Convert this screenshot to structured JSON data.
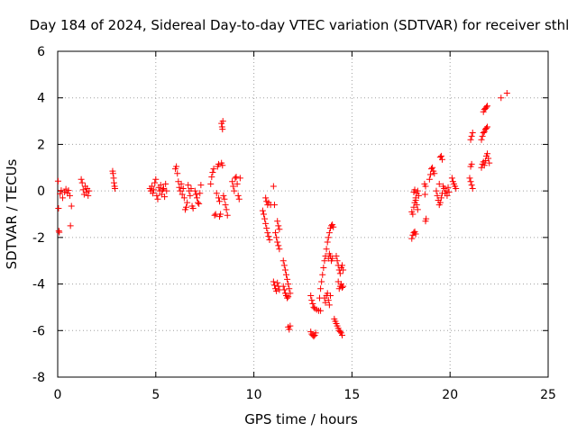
{
  "chart_data": {
    "type": "scatter",
    "title": "Day 184 of 2024, Sidereal Day-to-day VTEC variation (SDTVAR) for receiver sthl",
    "xlabel": "GPS time / hours",
    "ylabel": "SDTVAR / TECUs",
    "xlim": [
      0,
      25
    ],
    "ylim": [
      -8,
      6
    ],
    "xticks": [
      0,
      5,
      10,
      15,
      20,
      25
    ],
    "yticks": [
      -8,
      -6,
      -4,
      -2,
      0,
      2,
      4,
      6
    ],
    "xtick_labels": [
      "0",
      "5",
      "10",
      "15",
      "20",
      "25"
    ],
    "ytick_labels": [
      "-8",
      "-6",
      "-4",
      "-2",
      "0",
      "2",
      "4",
      "6"
    ],
    "grid": true,
    "marker": "+",
    "color": "#ff0000",
    "series": [
      {
        "name": "sthl",
        "points": [
          [
            0.02,
            0.42
          ],
          [
            0.04,
            -0.75
          ],
          [
            0.06,
            -1.72
          ],
          [
            0.08,
            -1.78
          ],
          [
            0.12,
            -0.12
          ],
          [
            0.18,
            0.02
          ],
          [
            0.25,
            -0.3
          ],
          [
            0.35,
            -0.05
          ],
          [
            0.42,
            0.08
          ],
          [
            0.5,
            -0.1
          ],
          [
            0.55,
            0.02
          ],
          [
            0.62,
            -0.2
          ],
          [
            0.65,
            -1.5
          ],
          [
            0.7,
            -0.65
          ],
          [
            1.2,
            0.5
          ],
          [
            1.25,
            0.35
          ],
          [
            1.3,
            0.05
          ],
          [
            1.35,
            -0.15
          ],
          [
            1.4,
            0.2
          ],
          [
            1.45,
            -0.05
          ],
          [
            1.5,
            0.1
          ],
          [
            1.55,
            -0.2
          ],
          [
            1.6,
            0.0
          ],
          [
            2.8,
            0.85
          ],
          [
            2.82,
            0.75
          ],
          [
            2.85,
            0.55
          ],
          [
            2.87,
            0.35
          ],
          [
            2.9,
            0.2
          ],
          [
            2.92,
            0.1
          ],
          [
            4.7,
            0.1
          ],
          [
            4.75,
            0.0
          ],
          [
            4.8,
            0.2
          ],
          [
            4.85,
            -0.1
          ],
          [
            4.9,
            0.05
          ],
          [
            4.95,
            0.35
          ],
          [
            5.0,
            0.5
          ],
          [
            5.05,
            -0.2
          ],
          [
            5.1,
            -0.35
          ],
          [
            5.15,
            0.15
          ],
          [
            5.2,
            0.0
          ],
          [
            5.25,
            0.25
          ],
          [
            5.3,
            -0.15
          ],
          [
            5.35,
            0.05
          ],
          [
            5.4,
            0.1
          ],
          [
            5.45,
            -0.25
          ],
          [
            5.5,
            0.3
          ],
          [
            5.55,
            0.0
          ],
          [
            6.0,
            0.95
          ],
          [
            6.05,
            1.05
          ],
          [
            6.1,
            0.75
          ],
          [
            6.15,
            0.4
          ],
          [
            6.2,
            0.15
          ],
          [
            6.25,
            0.0
          ],
          [
            6.3,
            0.3
          ],
          [
            6.35,
            -0.15
          ],
          [
            6.4,
            0.1
          ],
          [
            6.45,
            -0.3
          ],
          [
            6.5,
            -0.8
          ],
          [
            6.55,
            -0.7
          ],
          [
            6.6,
            -0.5
          ],
          [
            6.65,
            0.25
          ],
          [
            6.7,
            0.0
          ],
          [
            6.75,
            -0.2
          ],
          [
            6.8,
            0.1
          ],
          [
            6.85,
            -0.65
          ],
          [
            6.9,
            -0.75
          ],
          [
            7.0,
            0.0
          ],
          [
            7.05,
            -0.15
          ],
          [
            7.1,
            -0.3
          ],
          [
            7.15,
            -0.5
          ],
          [
            7.2,
            -0.55
          ],
          [
            7.25,
            -0.1
          ],
          [
            7.3,
            0.25
          ],
          [
            7.8,
            0.3
          ],
          [
            7.85,
            0.6
          ],
          [
            7.9,
            0.8
          ],
          [
            7.95,
            0.95
          ],
          [
            8.0,
            -1.05
          ],
          [
            8.05,
            -1.0
          ],
          [
            8.1,
            -0.1
          ],
          [
            8.15,
            1.05
          ],
          [
            8.2,
            1.15
          ],
          [
            8.25,
            -1.1
          ],
          [
            8.3,
            -1.0
          ],
          [
            8.35,
            1.2
          ],
          [
            8.4,
            1.1
          ],
          [
            8.35,
            2.9
          ],
          [
            8.38,
            2.75
          ],
          [
            8.4,
            2.65
          ],
          [
            8.42,
            3.0
          ],
          [
            8.45,
            -0.2
          ],
          [
            8.5,
            -0.35
          ],
          [
            8.55,
            -0.6
          ],
          [
            8.6,
            -0.8
          ],
          [
            8.65,
            -1.05
          ],
          [
            8.2,
            -0.3
          ],
          [
            8.25,
            -0.45
          ],
          [
            8.9,
            0.4
          ],
          [
            8.95,
            0.2
          ],
          [
            9.0,
            0.0
          ],
          [
            9.05,
            0.55
          ],
          [
            9.1,
            0.6
          ],
          [
            9.15,
            0.3
          ],
          [
            9.2,
            -0.2
          ],
          [
            9.25,
            -0.35
          ],
          [
            9.3,
            0.55
          ],
          [
            10.45,
            -0.85
          ],
          [
            10.5,
            -1.0
          ],
          [
            10.55,
            -1.2
          ],
          [
            10.6,
            -1.4
          ],
          [
            10.65,
            -1.6
          ],
          [
            10.7,
            -1.8
          ],
          [
            10.75,
            -1.95
          ],
          [
            10.8,
            -2.1
          ],
          [
            10.6,
            -0.3
          ],
          [
            10.65,
            -0.45
          ],
          [
            10.7,
            -0.6
          ],
          [
            10.75,
            -0.5
          ],
          [
            10.85,
            -0.6
          ],
          [
            11.0,
            0.2
          ],
          [
            11.05,
            -0.6
          ],
          [
            11.1,
            -1.8
          ],
          [
            11.15,
            -2.0
          ],
          [
            11.2,
            -2.2
          ],
          [
            11.25,
            -2.35
          ],
          [
            11.3,
            -2.5
          ],
          [
            11.2,
            -1.3
          ],
          [
            11.25,
            -1.5
          ],
          [
            11.3,
            -1.65
          ],
          [
            11.0,
            -3.9
          ],
          [
            11.05,
            -4.05
          ],
          [
            11.1,
            -4.2
          ],
          [
            11.15,
            -4.3
          ],
          [
            11.2,
            -3.95
          ],
          [
            11.25,
            -4.1
          ],
          [
            11.3,
            -4.25
          ],
          [
            11.5,
            -3.0
          ],
          [
            11.55,
            -3.2
          ],
          [
            11.6,
            -3.4
          ],
          [
            11.65,
            -3.6
          ],
          [
            11.7,
            -3.8
          ],
          [
            11.75,
            -4.0
          ],
          [
            11.8,
            -4.2
          ],
          [
            11.85,
            -4.4
          ],
          [
            11.5,
            -4.1
          ],
          [
            11.55,
            -4.25
          ],
          [
            11.6,
            -4.4
          ],
          [
            11.65,
            -4.5
          ],
          [
            11.7,
            -4.6
          ],
          [
            11.75,
            -4.55
          ],
          [
            11.75,
            -5.85
          ],
          [
            11.8,
            -5.95
          ],
          [
            11.85,
            -5.8
          ],
          [
            12.9,
            -6.05
          ],
          [
            12.95,
            -6.15
          ],
          [
            13.0,
            -6.2
          ],
          [
            13.05,
            -6.25
          ],
          [
            13.1,
            -6.2
          ],
          [
            13.15,
            -6.1
          ],
          [
            12.9,
            -4.5
          ],
          [
            12.95,
            -4.7
          ],
          [
            13.0,
            -4.85
          ],
          [
            13.05,
            -5.0
          ],
          [
            13.1,
            -5.05
          ],
          [
            13.2,
            -5.1
          ],
          [
            13.3,
            -5.15
          ],
          [
            13.4,
            -5.15
          ],
          [
            13.35,
            -4.6
          ],
          [
            13.4,
            -4.2
          ],
          [
            13.45,
            -3.9
          ],
          [
            13.5,
            -3.6
          ],
          [
            13.55,
            -3.3
          ],
          [
            13.6,
            -3.0
          ],
          [
            13.65,
            -2.8
          ],
          [
            13.7,
            -2.5
          ],
          [
            13.75,
            -2.2
          ],
          [
            13.8,
            -2.0
          ],
          [
            13.85,
            -1.8
          ],
          [
            13.9,
            -1.6
          ],
          [
            13.95,
            -1.5
          ],
          [
            14.0,
            -1.45
          ],
          [
            14.05,
            -1.55
          ],
          [
            13.6,
            -4.6
          ],
          [
            13.65,
            -4.8
          ],
          [
            13.7,
            -4.5
          ],
          [
            13.75,
            -4.4
          ],
          [
            13.8,
            -4.7
          ],
          [
            13.85,
            -4.9
          ],
          [
            13.9,
            -4.5
          ],
          [
            13.8,
            -2.9
          ],
          [
            13.85,
            -2.7
          ],
          [
            13.9,
            -2.8
          ],
          [
            13.95,
            -3.0
          ],
          [
            14.0,
            -2.9
          ],
          [
            14.1,
            -5.5
          ],
          [
            14.15,
            -5.6
          ],
          [
            14.2,
            -5.7
          ],
          [
            14.25,
            -5.8
          ],
          [
            14.3,
            -5.9
          ],
          [
            14.35,
            -6.0
          ],
          [
            14.4,
            -6.05
          ],
          [
            14.45,
            -6.1
          ],
          [
            14.5,
            -6.2
          ],
          [
            14.2,
            -2.8
          ],
          [
            14.25,
            -3.0
          ],
          [
            14.3,
            -3.2
          ],
          [
            14.35,
            -3.4
          ],
          [
            14.4,
            -3.55
          ],
          [
            14.45,
            -3.3
          ],
          [
            14.5,
            -3.2
          ],
          [
            14.55,
            -3.4
          ],
          [
            14.3,
            -3.9
          ],
          [
            14.35,
            -4.2
          ],
          [
            14.4,
            -4.1
          ],
          [
            14.45,
            -4.0
          ],
          [
            14.5,
            -4.15
          ],
          [
            14.55,
            -4.1
          ],
          [
            18.05,
            -2.05
          ],
          [
            18.1,
            -1.9
          ],
          [
            18.15,
            -1.8
          ],
          [
            18.2,
            -1.75
          ],
          [
            18.25,
            -1.85
          ],
          [
            18.05,
            -0.9
          ],
          [
            18.1,
            -1.0
          ],
          [
            18.15,
            -0.7
          ],
          [
            18.2,
            -0.5
          ],
          [
            18.25,
            -0.3
          ],
          [
            18.3,
            -0.1
          ],
          [
            18.35,
            0.0
          ],
          [
            18.4,
            -0.2
          ],
          [
            18.15,
            -0.05
          ],
          [
            18.2,
            0.05
          ],
          [
            18.25,
            -0.4
          ],
          [
            18.3,
            -0.6
          ],
          [
            18.35,
            -0.8
          ],
          [
            18.7,
            0.3
          ],
          [
            18.75,
            0.2
          ],
          [
            18.72,
            -0.15
          ],
          [
            18.75,
            -1.3
          ],
          [
            18.78,
            -1.2
          ],
          [
            18.95,
            0.5
          ],
          [
            19.0,
            0.7
          ],
          [
            19.05,
            0.95
          ],
          [
            19.1,
            1.0
          ],
          [
            19.15,
            0.85
          ],
          [
            19.2,
            0.75
          ],
          [
            19.3,
            0.0
          ],
          [
            19.35,
            -0.2
          ],
          [
            19.4,
            -0.4
          ],
          [
            19.45,
            -0.6
          ],
          [
            19.5,
            -0.5
          ],
          [
            19.55,
            -0.3
          ],
          [
            19.6,
            -0.1
          ],
          [
            19.45,
            0.3
          ],
          [
            19.5,
            1.45
          ],
          [
            19.55,
            1.5
          ],
          [
            19.6,
            1.35
          ],
          [
            19.65,
            0.2
          ],
          [
            19.7,
            0.1
          ],
          [
            19.75,
            -0.1
          ],
          [
            19.8,
            0.0
          ],
          [
            19.85,
            -0.2
          ],
          [
            19.9,
            0.15
          ],
          [
            19.95,
            -0.05
          ],
          [
            20.1,
            0.55
          ],
          [
            20.15,
            0.4
          ],
          [
            20.2,
            0.3
          ],
          [
            20.25,
            0.2
          ],
          [
            20.3,
            0.1
          ],
          [
            21.0,
            0.55
          ],
          [
            21.05,
            0.4
          ],
          [
            21.1,
            0.25
          ],
          [
            21.15,
            0.1
          ],
          [
            21.05,
            1.05
          ],
          [
            21.1,
            1.15
          ],
          [
            21.05,
            2.2
          ],
          [
            21.1,
            2.35
          ],
          [
            21.15,
            2.5
          ],
          [
            21.6,
            1.0
          ],
          [
            21.65,
            1.15
          ],
          [
            21.7,
            1.25
          ],
          [
            21.75,
            1.1
          ],
          [
            21.8,
            1.3
          ],
          [
            21.85,
            1.5
          ],
          [
            21.9,
            1.6
          ],
          [
            21.95,
            1.4
          ],
          [
            22.0,
            1.2
          ],
          [
            21.6,
            2.2
          ],
          [
            21.65,
            2.35
          ],
          [
            21.7,
            2.5
          ],
          [
            21.75,
            2.55
          ],
          [
            21.8,
            2.65
          ],
          [
            21.85,
            2.7
          ],
          [
            21.9,
            2.75
          ],
          [
            21.7,
            3.4
          ],
          [
            21.75,
            3.5
          ],
          [
            21.8,
            3.55
          ],
          [
            21.85,
            3.6
          ],
          [
            21.9,
            3.65
          ],
          [
            22.6,
            4.0
          ],
          [
            22.9,
            4.2
          ]
        ]
      }
    ]
  }
}
